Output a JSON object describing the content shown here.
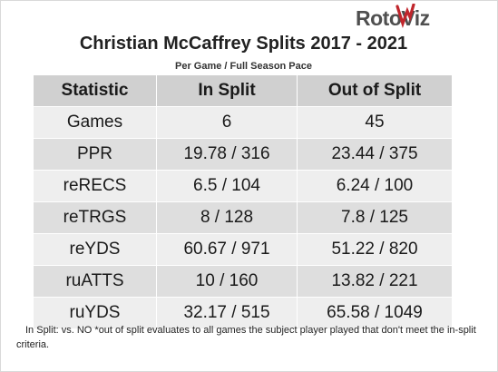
{
  "brand": {
    "logo_text": "RotoViz",
    "logo_accent_color": "#c0262c",
    "logo_text_color": "#4f4f4f"
  },
  "chart_data": {
    "type": "table",
    "title": "Christian McCaffrey Splits 2017 - 2021",
    "subtitle": "Per Game / Full Season Pace",
    "columns": [
      "Statistic",
      "In Split",
      "Out of Split"
    ],
    "rows": [
      [
        "Games",
        "6",
        "45"
      ],
      [
        "PPR",
        "19.78 / 316",
        "23.44 / 375"
      ],
      [
        "reRECS",
        "6.5 / 104",
        "6.24 / 100"
      ],
      [
        "reTRGS",
        "8 / 128",
        "7.8 / 125"
      ],
      [
        "reYDS",
        "60.67 / 971",
        "51.22 / 820"
      ],
      [
        "ruATTS",
        "10 / 160",
        "13.82 / 221"
      ],
      [
        "ruYDS",
        "32.17 / 515",
        "65.58 / 1049"
      ]
    ],
    "footnote": "In Split: vs. NO *out of split evaluates to all games the subject player played that don't meet the in-split criteria."
  }
}
